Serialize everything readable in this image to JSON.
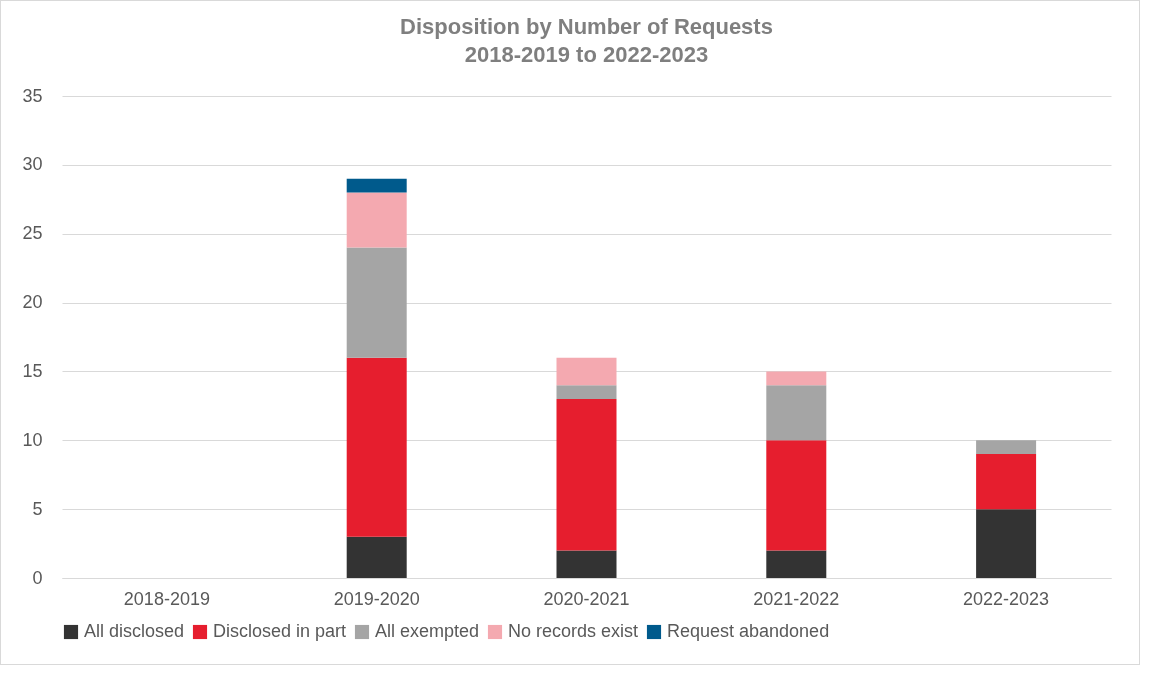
{
  "chart_data": {
    "type": "bar",
    "title": "Disposition by Number of Requests\n2018-2019 to 2022-2023",
    "categories": [
      "2018-2019",
      "2019-2020",
      "2020-2021",
      "2021-2022",
      "2022-2023"
    ],
    "stacked": true,
    "ylim": [
      0,
      35
    ],
    "yticks": [
      0,
      5,
      10,
      15,
      20,
      25,
      30,
      35
    ],
    "grid": "y",
    "legend": "bottom",
    "series": [
      {
        "name": "All disclosed",
        "color": "#333333",
        "values": [
          0,
          3,
          2,
          2,
          5
        ]
      },
      {
        "name": "Disclosed in part",
        "color": "#e61e2e",
        "values": [
          0,
          13,
          11,
          8,
          4
        ]
      },
      {
        "name": "All exempted",
        "color": "#a5a5a5",
        "values": [
          0,
          8,
          1,
          4,
          1
        ]
      },
      {
        "name": "No records exist",
        "color": "#f4a9b0",
        "values": [
          0,
          4,
          2,
          1,
          0
        ]
      },
      {
        "name": "Request abandoned",
        "color": "#005a8c",
        "values": [
          0,
          1,
          0,
          0,
          0
        ]
      }
    ]
  }
}
